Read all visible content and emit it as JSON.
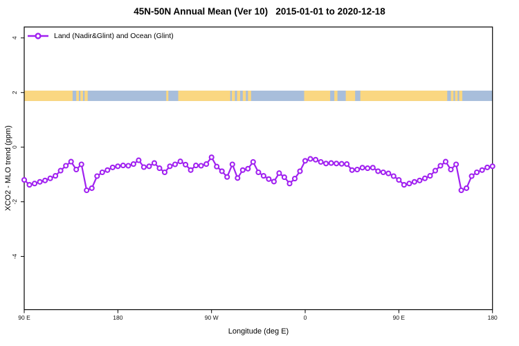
{
  "title": "45N-50N Annual Mean (Ver 10)   2015-01-01 to 2020-12-18",
  "legend": {
    "label": "Land (Nadir&Glint) and Ocean (Glint)"
  },
  "colors": {
    "series": "#A020F0",
    "land": "#FAD781",
    "ocean": "#A8BEDB",
    "axis": "#000000",
    "background": "#FFFFFF"
  },
  "chart_data": {
    "type": "line",
    "title": "45N-50N Annual Mean (Ver 10)   2015-01-01 to 2020-12-18",
    "xlabel": "Longitude (deg E)",
    "ylabel": "XCO2 - MLO trend (ppm)",
    "legend_position": "top-left",
    "grid": false,
    "x_range": [
      90,
      540
    ],
    "y_range": [
      -5.95,
      4.4
    ],
    "x_ticks": [
      {
        "deg": 90,
        "label": "90 E"
      },
      {
        "deg": 180,
        "label": "180"
      },
      {
        "deg": 270,
        "label": "90 W"
      },
      {
        "deg": 360,
        "label": "0"
      },
      {
        "deg": 450,
        "label": "90 E"
      },
      {
        "deg": 540,
        "label": "180"
      }
    ],
    "y_ticks": [
      {
        "value": -4,
        "label": "-4"
      },
      {
        "value": -2,
        "label": "-2"
      },
      {
        "value": 0,
        "label": "0"
      },
      {
        "value": 2,
        "label": "2"
      },
      {
        "value": 4,
        "label": "4"
      }
    ],
    "map_band": {
      "description": "45N-50N latitude strip map: land/ocean along longitude",
      "y_top": 2.07,
      "y_bottom": 1.69,
      "ocean_color": "#A8BEDB",
      "land_color": "#FAD781",
      "land_segments_deg": [
        [
          90,
          136.5
        ],
        [
          140,
          142.5
        ],
        [
          144,
          146.5
        ],
        [
          148,
          151
        ],
        [
          226.5,
          228.5
        ],
        [
          238,
          288
        ],
        [
          289.5,
          292.5
        ],
        [
          294.5,
          297.5
        ],
        [
          300,
          303
        ],
        [
          305,
          308
        ],
        [
          359,
          496.5
        ],
        [
          500,
          502.5
        ],
        [
          504,
          506.5
        ],
        [
          508,
          511
        ]
      ],
      "water_patches_deg": [
        [
          384,
          388
        ],
        [
          391,
          399
        ],
        [
          408,
          413
        ]
      ]
    },
    "series": [
      {
        "name": "Land (Nadir&Glint) and Ocean (Glint)",
        "color": "#A020F0",
        "marker": "open-circle",
        "x": [
          90,
          95,
          100,
          105,
          110,
          115,
          120,
          125,
          130,
          135,
          140,
          145,
          150,
          155,
          160,
          165,
          170,
          175,
          180,
          185,
          190,
          195,
          200,
          205,
          210,
          215,
          220,
          225,
          230,
          235,
          240,
          245,
          250,
          255,
          260,
          265,
          270,
          275,
          280,
          285,
          290,
          295,
          300,
          305,
          310,
          315,
          320,
          325,
          330,
          335,
          340,
          345,
          350,
          355,
          360,
          365,
          370,
          375,
          380,
          385,
          390,
          395,
          400,
          405,
          410,
          415,
          420,
          425,
          430,
          435,
          440,
          445,
          450,
          455,
          460,
          465,
          470,
          475,
          480,
          485,
          490,
          495,
          500,
          505,
          510,
          515,
          520,
          525,
          530,
          535,
          540
        ],
        "values": [
          -1.2,
          -1.38,
          -1.33,
          -1.27,
          -1.22,
          -1.14,
          -1.05,
          -0.86,
          -0.68,
          -0.53,
          -0.82,
          -0.63,
          -1.58,
          -1.5,
          -1.06,
          -0.92,
          -0.84,
          -0.74,
          -0.7,
          -0.67,
          -0.68,
          -0.62,
          -0.48,
          -0.73,
          -0.7,
          -0.58,
          -0.77,
          -0.92,
          -0.7,
          -0.63,
          -0.52,
          -0.64,
          -0.84,
          -0.67,
          -0.68,
          -0.62,
          -0.37,
          -0.71,
          -0.88,
          -1.09,
          -0.63,
          -1.13,
          -0.84,
          -0.79,
          -0.54,
          -0.92,
          -1.05,
          -1.17,
          -1.26,
          -0.95,
          -1.1,
          -1.33,
          -1.15,
          -0.88,
          -0.5,
          -0.43,
          -0.46,
          -0.54,
          -0.6,
          -0.58,
          -0.6,
          -0.61,
          -0.62,
          -0.84,
          -0.82,
          -0.75,
          -0.77,
          -0.75,
          -0.88,
          -0.92,
          -0.96,
          -1.06,
          -1.2,
          -1.38,
          -1.33,
          -1.27,
          -1.22,
          -1.14,
          -1.05,
          -0.86,
          -0.68,
          -0.53,
          -0.82,
          -0.63,
          -1.58,
          -1.5,
          -1.06,
          -0.92,
          -0.84,
          -0.74,
          -0.7
        ]
      }
    ]
  }
}
